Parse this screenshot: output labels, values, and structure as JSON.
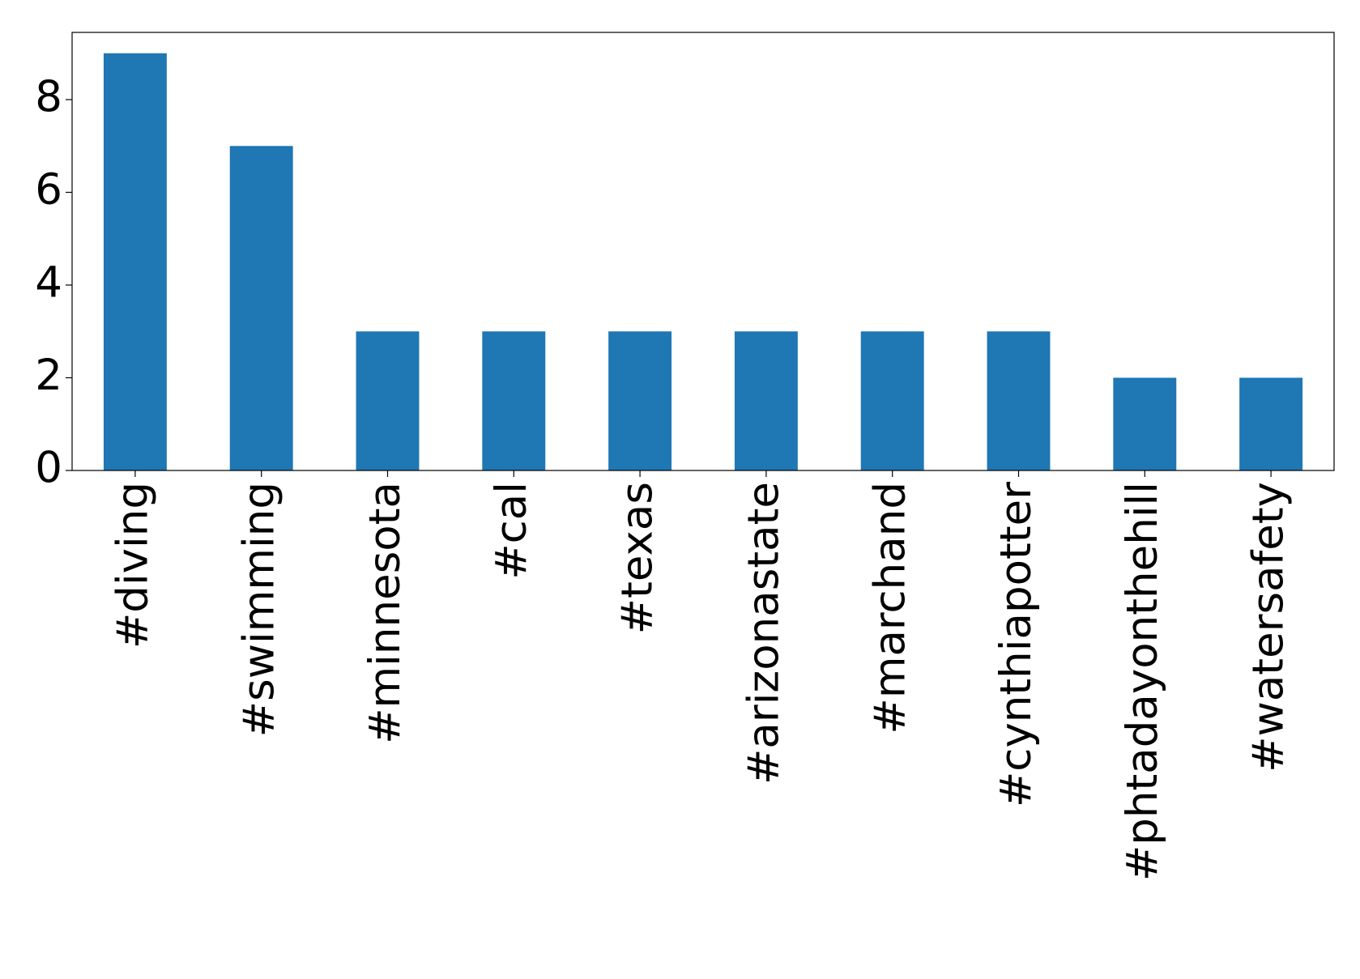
{
  "chart_data": {
    "type": "bar",
    "categories": [
      "#diving",
      "#swimming",
      "#minnesota",
      "#cal",
      "#texas",
      "#arizonastate",
      "#marchand",
      "#cynthiapotter",
      "#phtadayonthehill",
      "#watersafety"
    ],
    "values": [
      9,
      7,
      3,
      3,
      3,
      3,
      3,
      3,
      2,
      2
    ],
    "color": "#1f77b4",
    "ylim": [
      0,
      9.45
    ],
    "yticks": [
      0,
      2,
      4,
      6,
      8
    ],
    "grid": false
  }
}
